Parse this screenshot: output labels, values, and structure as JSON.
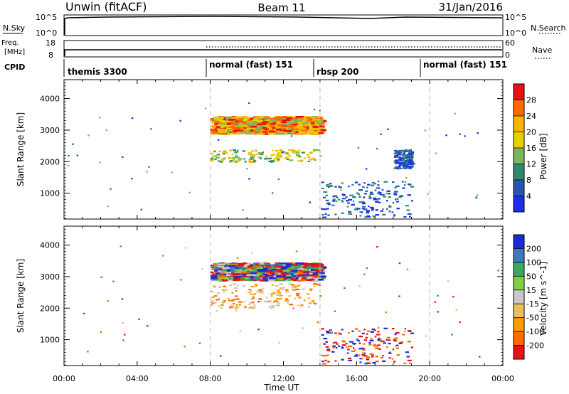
{
  "header": {
    "site": "Unwin (fitACF)",
    "beam": "Beam 11",
    "date": "31/Jan/2016"
  },
  "nsky_panel": {
    "label": "N.Sky",
    "ticks_left": [
      "10^5",
      "10^0"
    ],
    "ticks_right": [
      "10^5",
      "10^0"
    ],
    "right_label": "N.Search"
  },
  "freq_panel": {
    "label_line1": "Freq.",
    "label_line2": "[MHz]",
    "ticks_left": [
      "18",
      "8"
    ],
    "ticks_right": [
      "60",
      "0"
    ],
    "right_label": "Nave",
    "freq_mhz": 11,
    "nave": 30
  },
  "cpid_panel": {
    "label": "CPID",
    "modes": [
      {
        "name": "themis 3300",
        "start": "00:00",
        "end": "08:00"
      },
      {
        "name": "normal (fast) 151",
        "start": "08:00",
        "end": "14:00"
      },
      {
        "name": "rbsp 200",
        "start": "14:00",
        "end": "20:00"
      },
      {
        "name": "normal (fast) 151",
        "start": "20:00",
        "end": "24:00"
      }
    ]
  },
  "power_colorbar": {
    "title": "Power [dB]",
    "ticks": [
      "28",
      "24",
      "20",
      "16",
      "12",
      "8",
      "4"
    ],
    "colors": [
      "#e81010",
      "#ff6a00",
      "#ffb400",
      "#e8d000",
      "#7ab85a",
      "#2e8a6e",
      "#2456b0",
      "#1e2ee8"
    ]
  },
  "velocity_colorbar": {
    "title": "Velocity [m s^-1]",
    "ticks": [
      "200",
      "100",
      "50",
      "15",
      "-15",
      "-50",
      "-100",
      "-200"
    ],
    "colors": [
      "#1a2ad8",
      "#3e7ab8",
      "#3aa860",
      "#80d040",
      "#c8c8c8",
      "#e8c060",
      "#ff9a00",
      "#ff6a00",
      "#e81010"
    ]
  },
  "x_axis": {
    "label": "Time UT",
    "ticks": [
      "00:00",
      "04:00",
      "08:00",
      "12:00",
      "16:00",
      "20:00",
      "00:00"
    ]
  },
  "chart_data": [
    {
      "type": "heatmap",
      "title": "",
      "xlabel": "Time UT",
      "ylabel": "Slant Range [km]",
      "ylim": [
        180,
        4600
      ],
      "yticks": [
        "4000",
        "3000",
        "2000",
        "1000"
      ],
      "colorbar": "Power [dB]",
      "mode_boundaries_ut": [
        "08:00",
        "14:00",
        "20:00"
      ],
      "echo_regions": [
        {
          "ut_start": "08:00",
          "ut_end": "14:00",
          "range_km": [
            2900,
            3450
          ],
          "value": "12-28 dB"
        },
        {
          "ut_start": "08:00",
          "ut_end": "14:00",
          "range_km": [
            2000,
            2400
          ],
          "value": "12-20 dB"
        },
        {
          "ut_start": "14:00",
          "ut_end": "19:00",
          "range_km": [
            250,
            1400
          ],
          "value": "4-8 dB"
        },
        {
          "ut_start": "18:00",
          "ut_end": "19:00",
          "range_km": [
            1800,
            2400
          ],
          "value": "4-8 dB"
        }
      ]
    },
    {
      "type": "heatmap",
      "title": "",
      "xlabel": "Time UT",
      "ylabel": "Slant Range [km]",
      "ylim": [
        180,
        4600
      ],
      "yticks": [
        "4000",
        "3000",
        "2000",
        "1000"
      ],
      "colorbar": "Velocity [m s^-1]",
      "mode_boundaries_ut": [
        "08:00",
        "14:00",
        "20:00"
      ],
      "echo_regions": [
        {
          "ut_start": "08:00",
          "ut_end": "14:00",
          "range_km": [
            2900,
            3450
          ],
          "value": "-200 to 200 m/s"
        },
        {
          "ut_start": "08:00",
          "ut_end": "14:00",
          "range_km": [
            2000,
            2800
          ],
          "value": "-100 to -15 m/s"
        },
        {
          "ut_start": "14:00",
          "ut_end": "19:00",
          "range_km": [
            250,
            1400
          ],
          "value": "-200 to -100 m/s"
        }
      ]
    }
  ]
}
